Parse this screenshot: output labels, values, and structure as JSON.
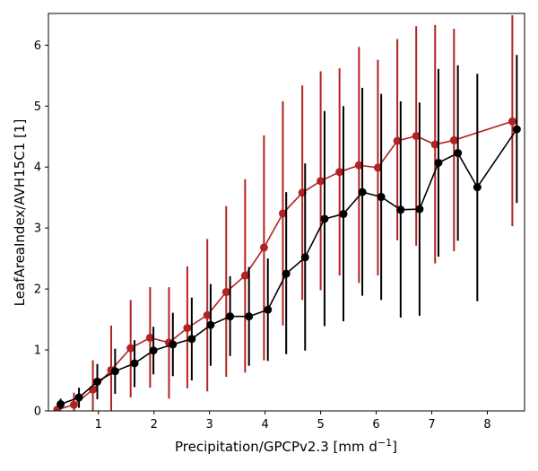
{
  "chart_data": {
    "type": "line",
    "xlabel": "Precipitation/GPCPv2.3 [mm d",
    "xlabel_unit_superscript": "−1",
    "xlabel_suffix": "]",
    "ylabel": "LeafAreaIndex/AVH15C1 [1]",
    "xlim": [
      0.1,
      8.67
    ],
    "ylim": [
      0,
      6.52
    ],
    "xticks": [
      "1",
      "2",
      "3",
      "4",
      "5",
      "6",
      "7",
      "8"
    ],
    "yticks": [
      "0",
      "1",
      "2",
      "3",
      "4",
      "5",
      "6"
    ],
    "grid": false,
    "legend": "none",
    "series": [
      {
        "color": "#b22222",
        "points": [
          {
            "x": 0.26,
            "y": 0.02,
            "lo": 0.0,
            "hi": 0.05
          },
          {
            "x": 0.56,
            "y": 0.1,
            "lo": 0.0,
            "hi": 0.3
          },
          {
            "x": 0.9,
            "y": 0.35,
            "lo": 0.0,
            "hi": 0.83
          },
          {
            "x": 1.23,
            "y": 0.67,
            "lo": 0.0,
            "hi": 1.4
          },
          {
            "x": 1.58,
            "y": 1.03,
            "lo": 0.22,
            "hi": 1.82
          },
          {
            "x": 1.93,
            "y": 1.2,
            "lo": 0.38,
            "hi": 2.03
          },
          {
            "x": 2.27,
            "y": 1.12,
            "lo": 0.2,
            "hi": 2.03
          },
          {
            "x": 2.6,
            "y": 1.36,
            "lo": 0.37,
            "hi": 2.37
          },
          {
            "x": 2.96,
            "y": 1.57,
            "lo": 0.32,
            "hi": 2.82
          },
          {
            "x": 3.3,
            "y": 1.95,
            "lo": 0.56,
            "hi": 3.36
          },
          {
            "x": 3.64,
            "y": 2.22,
            "lo": 0.63,
            "hi": 3.8
          },
          {
            "x": 3.98,
            "y": 2.68,
            "lo": 0.83,
            "hi": 4.52
          },
          {
            "x": 4.32,
            "y": 3.24,
            "lo": 1.4,
            "hi": 5.08
          },
          {
            "x": 4.67,
            "y": 3.58,
            "lo": 1.82,
            "hi": 5.34
          },
          {
            "x": 5.0,
            "y": 3.77,
            "lo": 1.98,
            "hi": 5.57
          },
          {
            "x": 5.34,
            "y": 3.92,
            "lo": 2.22,
            "hi": 5.62
          },
          {
            "x": 5.69,
            "y": 4.03,
            "lo": 2.1,
            "hi": 5.97
          },
          {
            "x": 6.03,
            "y": 3.99,
            "lo": 2.22,
            "hi": 5.76
          },
          {
            "x": 6.38,
            "y": 4.43,
            "lo": 2.8,
            "hi": 6.1
          },
          {
            "x": 6.72,
            "y": 4.51,
            "lo": 2.71,
            "hi": 6.31
          },
          {
            "x": 7.06,
            "y": 4.37,
            "lo": 2.42,
            "hi": 6.33
          },
          {
            "x": 7.4,
            "y": 4.44,
            "lo": 2.62,
            "hi": 6.27
          },
          {
            "x": 8.45,
            "y": 4.75,
            "lo": 3.03,
            "hi": 6.49
          }
        ]
      },
      {
        "color": "#000000",
        "points": [
          {
            "x": 0.32,
            "y": 0.11,
            "lo": 0.03,
            "hi": 0.2
          },
          {
            "x": 0.65,
            "y": 0.22,
            "lo": 0.05,
            "hi": 0.38
          },
          {
            "x": 0.98,
            "y": 0.48,
            "lo": 0.19,
            "hi": 0.77
          },
          {
            "x": 1.3,
            "y": 0.65,
            "lo": 0.28,
            "hi": 1.02
          },
          {
            "x": 1.65,
            "y": 0.78,
            "lo": 0.39,
            "hi": 1.16
          },
          {
            "x": 1.99,
            "y": 0.99,
            "lo": 0.6,
            "hi": 1.38
          },
          {
            "x": 2.34,
            "y": 1.09,
            "lo": 0.57,
            "hi": 1.61
          },
          {
            "x": 2.68,
            "y": 1.18,
            "lo": 0.5,
            "hi": 1.86
          },
          {
            "x": 3.02,
            "y": 1.41,
            "lo": 0.74,
            "hi": 2.08
          },
          {
            "x": 3.37,
            "y": 1.55,
            "lo": 0.9,
            "hi": 2.21
          },
          {
            "x": 3.71,
            "y": 1.55,
            "lo": 0.74,
            "hi": 2.36
          },
          {
            "x": 4.05,
            "y": 1.66,
            "lo": 0.82,
            "hi": 2.5
          },
          {
            "x": 4.38,
            "y": 2.25,
            "lo": 0.93,
            "hi": 3.59
          },
          {
            "x": 4.72,
            "y": 2.52,
            "lo": 0.99,
            "hi": 4.06
          },
          {
            "x": 5.07,
            "y": 3.15,
            "lo": 1.39,
            "hi": 4.92
          },
          {
            "x": 5.41,
            "y": 3.23,
            "lo": 1.47,
            "hi": 5.0
          },
          {
            "x": 5.75,
            "y": 3.59,
            "lo": 1.89,
            "hi": 5.3
          },
          {
            "x": 6.09,
            "y": 3.51,
            "lo": 1.82,
            "hi": 5.2
          },
          {
            "x": 6.44,
            "y": 3.3,
            "lo": 1.53,
            "hi": 5.08
          },
          {
            "x": 6.78,
            "y": 3.31,
            "lo": 1.56,
            "hi": 5.06
          },
          {
            "x": 7.12,
            "y": 4.07,
            "lo": 2.53,
            "hi": 5.61
          },
          {
            "x": 7.47,
            "y": 4.23,
            "lo": 2.79,
            "hi": 5.67
          },
          {
            "x": 7.82,
            "y": 3.67,
            "lo": 1.8,
            "hi": 5.53
          },
          {
            "x": 8.53,
            "y": 4.62,
            "lo": 3.41,
            "hi": 5.84
          }
        ]
      }
    ]
  }
}
